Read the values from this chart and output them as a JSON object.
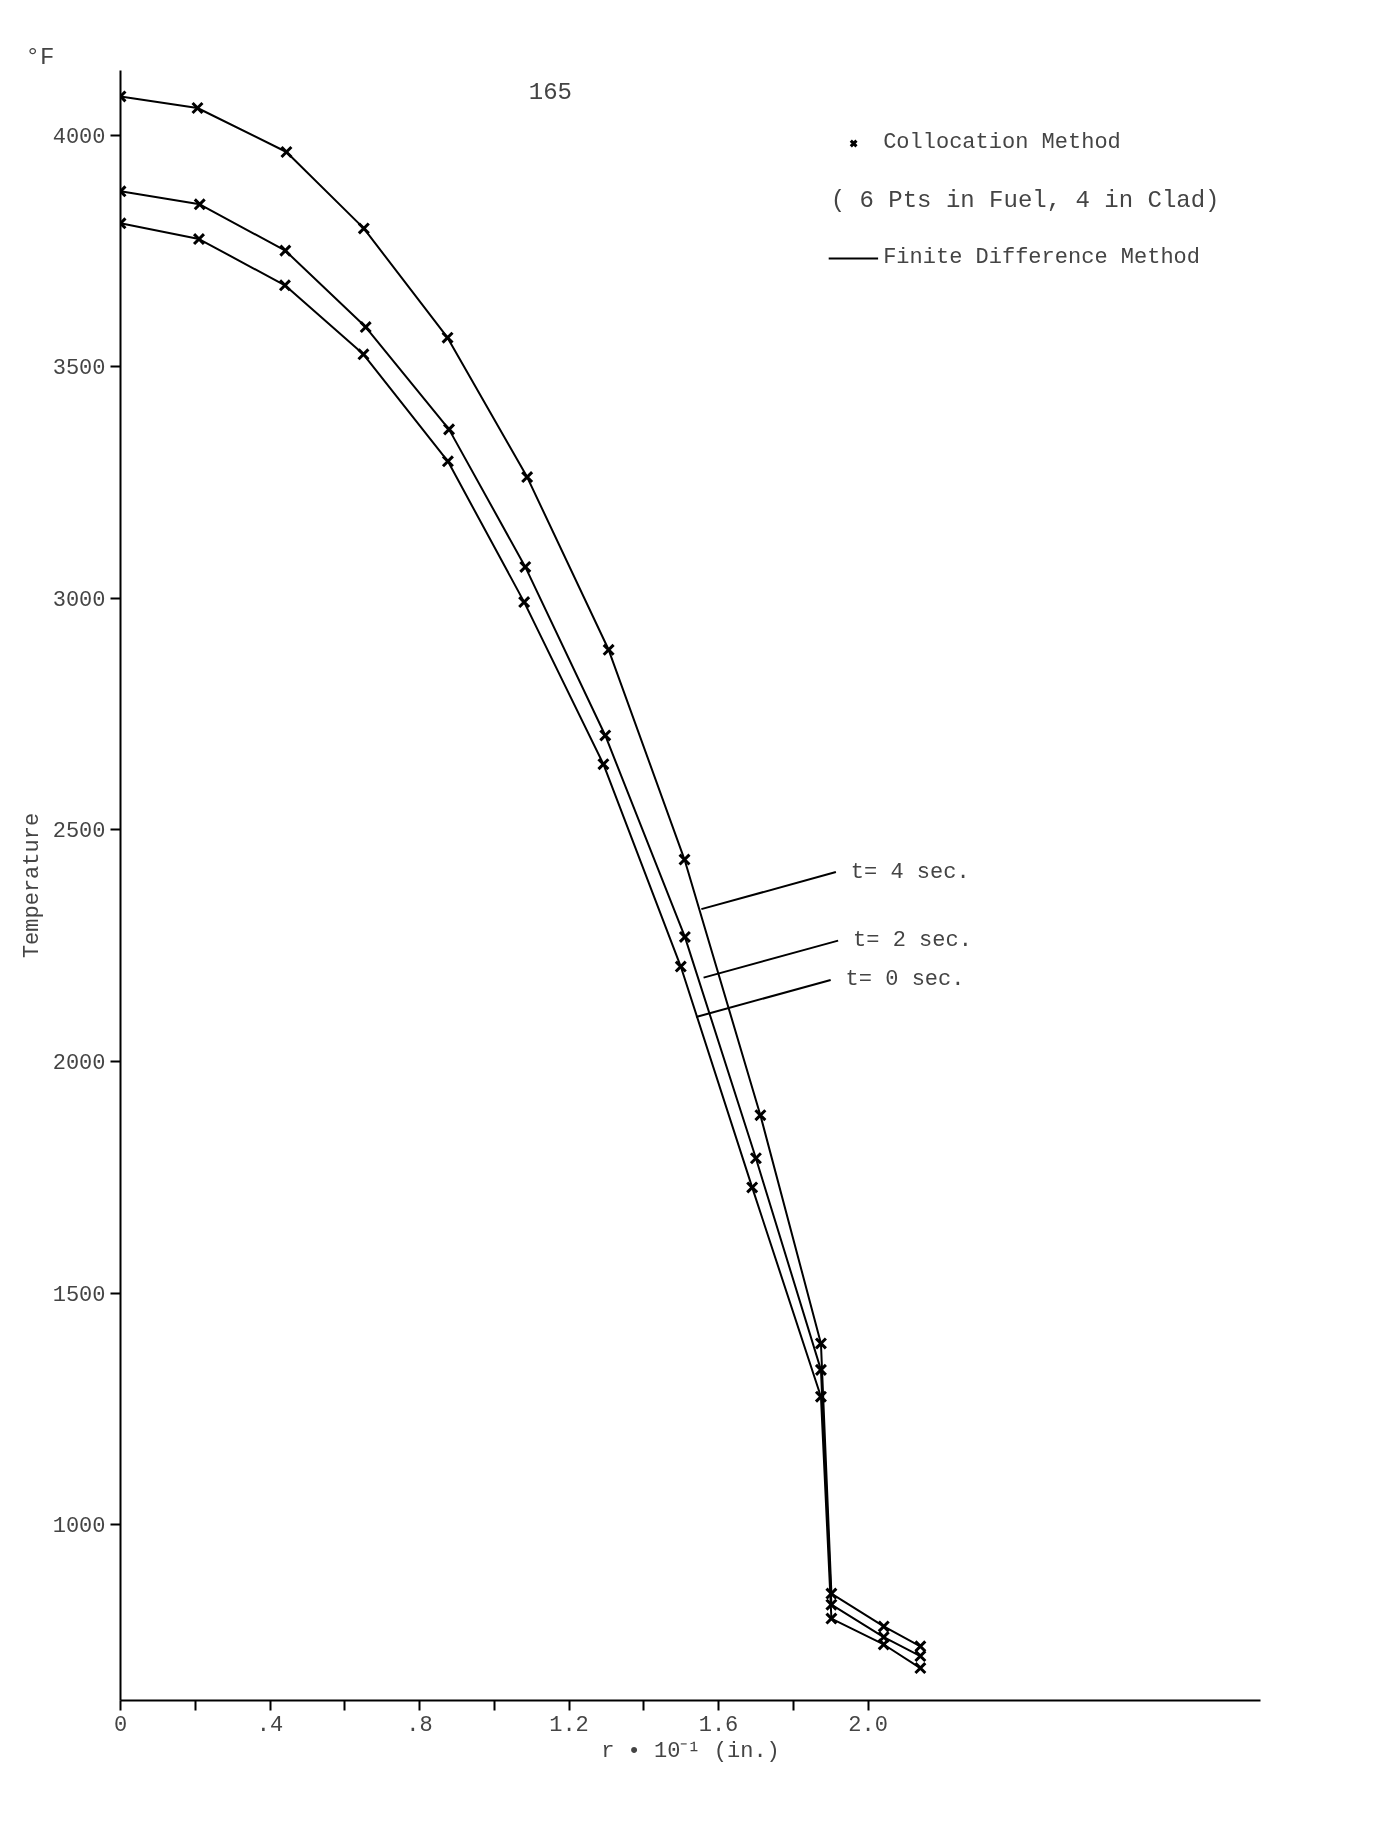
{
  "chart_data": {
    "type": "line",
    "xlabel": "r • 10⁻¹ (in.)",
    "ylabel": "Temperature",
    "xlim": [
      0,
      3.05
    ],
    "ylim": [
      620,
      4140
    ],
    "xticks": [
      0,
      {
        "value": 0.2,
        "label": null
      },
      {
        "value": 0.4,
        "label": ".4"
      },
      {
        "value": 0.6,
        "label": null
      },
      {
        "value": 0.8,
        "label": ".8"
      },
      {
        "value": 1.0,
        "label": null
      },
      {
        "value": 1.2,
        "label": "1.2"
      },
      {
        "value": 1.4,
        "label": null
      },
      {
        "value": 1.6,
        "label": "1.6"
      },
      {
        "value": 1.8,
        "label": null
      },
      {
        "value": 2.0,
        "label": "2.0"
      }
    ],
    "yticks": [
      1000,
      1500,
      2000,
      2500,
      3000,
      3500,
      4000
    ],
    "grid": false,
    "legend": "top right",
    "line_style": "solid",
    "series": [
      {
        "name": "Collocation Method",
        "type": "scatter",
        "marker": "cross",
        "color": "#000000",
        "x": [
          0,
          0.206,
          0.444,
          0.651,
          0.875,
          1.088,
          1.306,
          1.509,
          1.712,
          1.874,
          1.902,
          2.042,
          2.14,
          0,
          0.212,
          0.441,
          0.656,
          0.879,
          1.083,
          1.297,
          1.51,
          1.7,
          1.874,
          1.902,
          2.042,
          2.14,
          0,
          0.21,
          0.44,
          0.65,
          0.876,
          1.08,
          1.292,
          1.499,
          1.69,
          1.874,
          1.902,
          2.042,
          2.14
        ],
        "values": [
          4084,
          4059,
          3964,
          3799,
          3563,
          3262,
          2889,
          2436,
          1884,
          1391,
          851,
          780,
          737,
          3879,
          3851,
          3751,
          3586,
          3365,
          3068,
          2704,
          2269,
          1791,
          1334,
          827,
          757,
          716,
          3810,
          3776,
          3676,
          3527,
          3296,
          2992,
          2642,
          2205,
          1728,
          1276,
          797,
          741,
          690
        ]
      },
      {
        "name": "Finite Difference Method",
        "color": "#000000",
        "x": [
          0,
          0.206,
          0.444,
          0.651,
          0.875,
          1.088,
          1.306,
          1.509,
          1.712,
          1.874,
          1.902,
          2.042,
          2.14
        ],
        "values": [
          4084,
          4059,
          3964,
          3799,
          3563,
          3262,
          2889,
          2436,
          1884,
          1391,
          851,
          780,
          737
        ]
      },
      {
        "color": "#000000",
        "x": [
          0,
          0.212,
          0.441,
          0.656,
          0.879,
          1.083,
          1.297,
          1.51,
          1.7,
          1.874,
          1.902,
          2.042,
          2.14
        ],
        "values": [
          3879,
          3851,
          3751,
          3586,
          3365,
          3068,
          2704,
          2269,
          1791,
          1334,
          827,
          757,
          716
        ]
      },
      {
        "color": "#000000",
        "x": [
          0,
          0.21,
          0.44,
          0.65,
          0.876,
          1.08,
          1.292,
          1.499,
          1.69,
          1.874,
          1.902,
          2.042,
          2.14
        ],
        "values": [
          3810,
          3776,
          3676,
          3527,
          3296,
          2992,
          2642,
          2205,
          1728,
          1276,
          797,
          741,
          690
        ]
      }
    ],
    "annotations": [
      "165",
      "°F",
      "( 6 Pts in Fuel, 4 in Clad)",
      {
        "text": "t= 4 sec.",
        "x": 1.554,
        "y": 2329
      },
      {
        "text": "t= 2 sec.",
        "x": 1.56,
        "y": 2181
      },
      {
        "text": "t= 0 sec.",
        "x": 1.54,
        "y": 2096
      }
    ]
  }
}
